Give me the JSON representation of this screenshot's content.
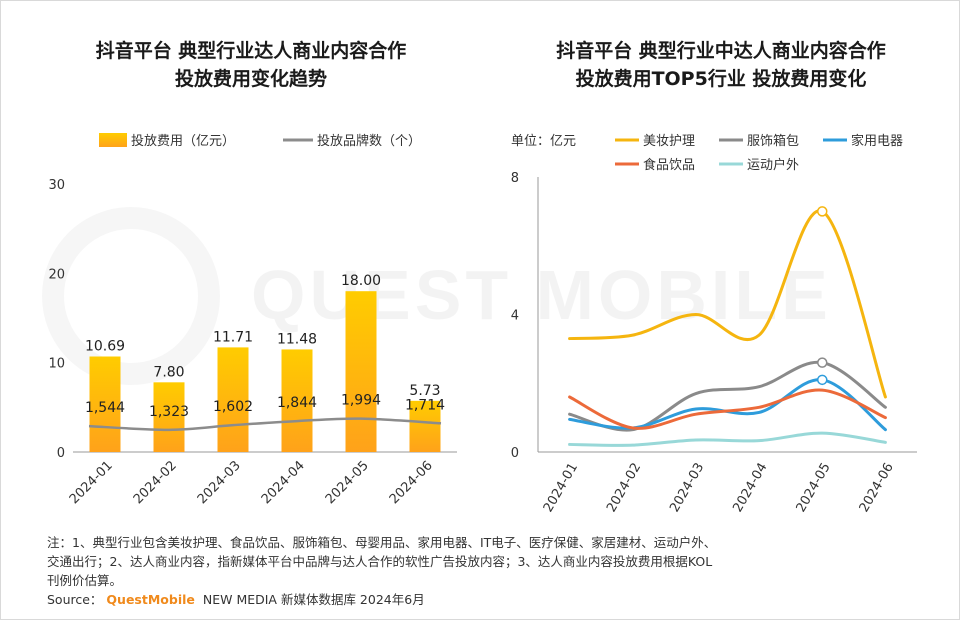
{
  "watermark": "QUEST MOBILE",
  "chart_data": [
    {
      "type": "bar",
      "title_lines": [
        "抖音平台 典型行业达人商业内容合作",
        "投放费用变化趋势"
      ],
      "categories": [
        "2024-01",
        "2024-02",
        "2024-03",
        "2024-04",
        "2024-05",
        "2024-06"
      ],
      "ylim": [
        0,
        30
      ],
      "yticks": [
        "0",
        "10",
        "20",
        "30"
      ],
      "series": [
        {
          "name": "投放费用（亿元）",
          "type": "bar",
          "color": "#FFBF1F",
          "values": [
            10.69,
            7.8,
            11.71,
            11.48,
            18.0,
            5.73
          ],
          "labels": [
            "10.69",
            "7.80",
            "11.71",
            "11.48",
            "18.00",
            "5.73"
          ]
        },
        {
          "name": "投放品牌数（个）",
          "type": "line",
          "color": "#8c8c8c",
          "values": [
            1544,
            1323,
            1602,
            1844,
            1994,
            1714
          ],
          "labels": [
            "1,544",
            "1,323",
            "1,602",
            "1,844",
            "1,994",
            "1,714"
          ]
        }
      ]
    },
    {
      "type": "line",
      "title_lines": [
        "抖音平台 典型行业中达人商业内容合作",
        "投放费用TOP5行业 投放费用变化"
      ],
      "unit_label": "单位：亿元",
      "categories": [
        "2024-01",
        "2024-02",
        "2024-03",
        "2024-04",
        "2024-05",
        "2024-06"
      ],
      "ylim": [
        0,
        8
      ],
      "yticks": [
        "0",
        "4",
        "8"
      ],
      "series": [
        {
          "name": "美妆护理",
          "color": "#F5B50F",
          "values": [
            3.3,
            3.4,
            4.0,
            3.4,
            7.0,
            1.6
          ]
        },
        {
          "name": "服饰箱包",
          "color": "#8A8A8A",
          "values": [
            1.1,
            0.65,
            1.7,
            1.9,
            2.6,
            1.3
          ]
        },
        {
          "name": "家用电器",
          "color": "#2E9CDB",
          "values": [
            0.95,
            0.7,
            1.25,
            1.15,
            2.1,
            0.65
          ]
        },
        {
          "name": "食品饮品",
          "color": "#EC6A3A",
          "values": [
            1.6,
            0.7,
            1.1,
            1.3,
            1.8,
            1.0
          ]
        },
        {
          "name": "运动户外",
          "color": "#98D8D8",
          "values": [
            0.22,
            0.2,
            0.35,
            0.33,
            0.55,
            0.28
          ]
        }
      ]
    }
  ],
  "footer": {
    "note_line1": "注：1、典型行业包含美妆护理、食品饮品、服饰箱包、母婴用品、家用电器、IT电子、医疗保健、家居建材、运动户外、",
    "note_line2": "交通出行；2、达人商业内容，指新媒体平台中品牌与达人合作的软性广告投放内容；3、达人商业内容投放费用根据KOL",
    "note_line3": "刊例价估算。",
    "source_label": "Source：",
    "source_brand": "QuestMobile",
    "source_text": "NEW MEDIA 新媒体数据库 2024年6月",
    "brand_color": "#F08A1C"
  }
}
